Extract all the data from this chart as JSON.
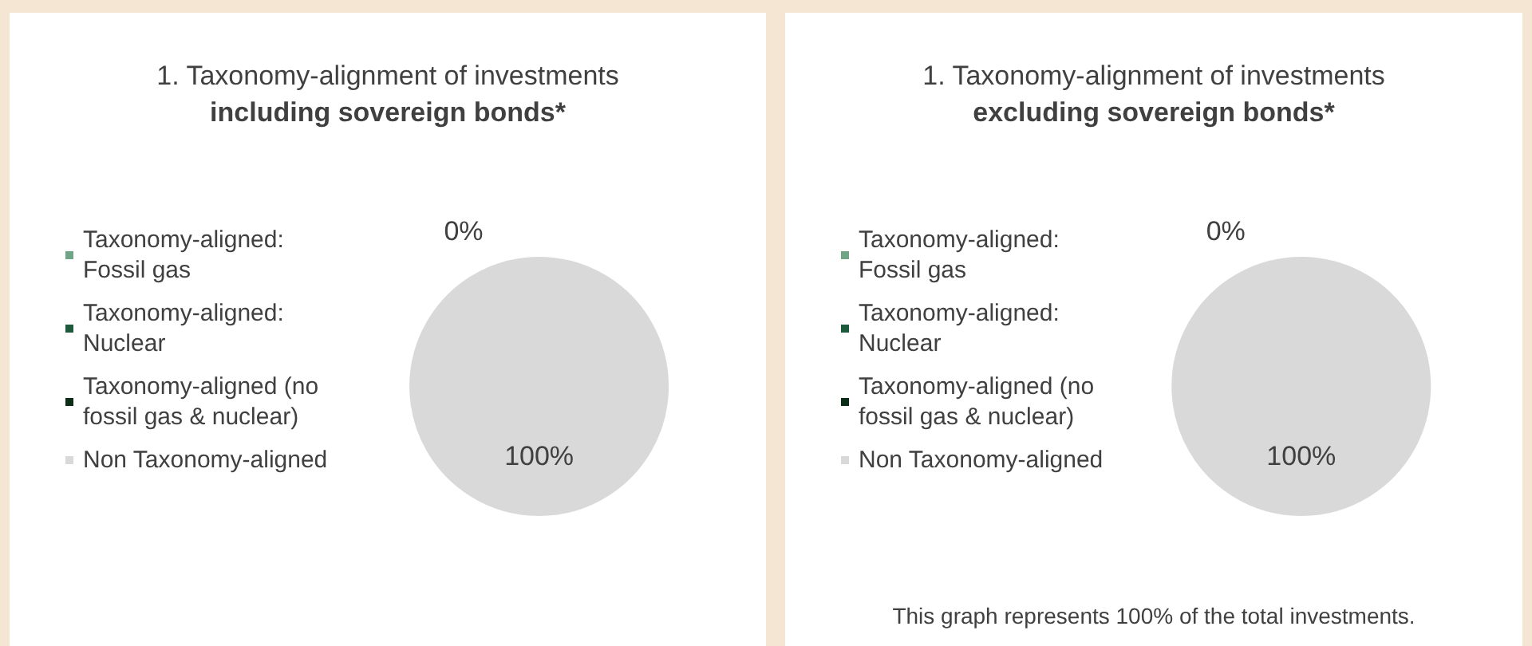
{
  "chart_data": [
    {
      "type": "pie",
      "title": "1. Taxonomy-alignment of investments",
      "subtitle": "including sovereign bonds*",
      "categories": [
        "Taxonomy-aligned: Fossil gas",
        "Taxonomy-aligned: Nuclear",
        "Taxonomy-aligned (no fossil gas & nuclear)",
        "Non Taxonomy-aligned"
      ],
      "values": [
        0,
        0,
        0,
        100
      ],
      "colors": [
        "#6fa487",
        "#1d5a3c",
        "#0c2e18",
        "#d9d9d9"
      ],
      "value_labels": [
        null,
        null,
        "0%",
        "100%"
      ],
      "legend": "left"
    },
    {
      "type": "pie",
      "title": "1. Taxonomy-alignment of investments",
      "subtitle": "excluding sovereign bonds*",
      "categories": [
        "Taxonomy-aligned: Fossil gas",
        "Taxonomy-aligned: Nuclear",
        "Taxonomy-aligned (no fossil gas & nuclear)",
        "Non Taxonomy-aligned"
      ],
      "values": [
        0,
        0,
        0,
        100
      ],
      "colors": [
        "#6fa487",
        "#1d5a3c",
        "#0c2e18",
        "#d9d9d9"
      ],
      "value_labels": [
        null,
        null,
        "0%",
        "100%"
      ],
      "legend": "left",
      "annotations": [
        "This graph represents 100% of the total investments."
      ]
    }
  ]
}
